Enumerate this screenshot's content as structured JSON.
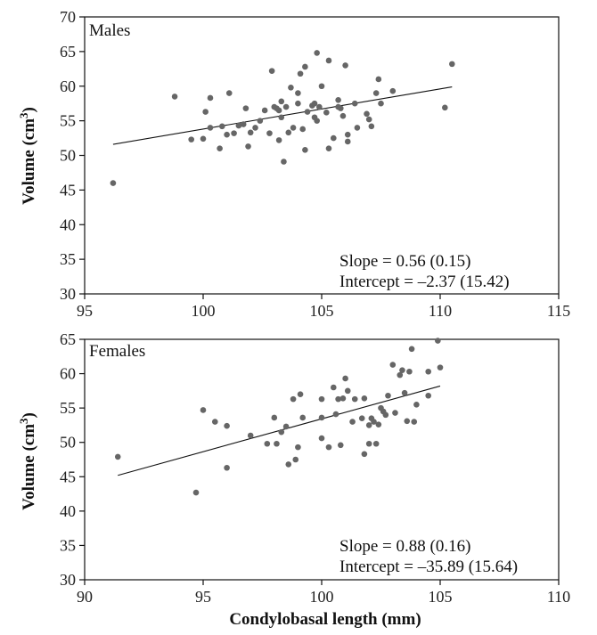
{
  "chart_data": [
    {
      "type": "scatter",
      "title": "Males",
      "xlabel": "",
      "ylabel": "Volume (cm3)",
      "xlim": [
        95,
        115
      ],
      "ylim": [
        30,
        70
      ],
      "xticks": [
        95,
        100,
        105,
        110,
        115
      ],
      "yticks": [
        30,
        35,
        40,
        45,
        50,
        55,
        60,
        65,
        70
      ],
      "slope_text": "Slope = 0.56 (0.15)",
      "intercept_text": "Intercept = –2.37 (15.42)",
      "fit_line": [
        [
          96.2,
          51.6
        ],
        [
          110.5,
          59.9
        ]
      ],
      "points": [
        [
          96.2,
          46.0
        ],
        [
          98.8,
          58.5
        ],
        [
          99.5,
          52.3
        ],
        [
          100.0,
          52.4
        ],
        [
          100.1,
          56.3
        ],
        [
          100.3,
          58.3
        ],
        [
          100.3,
          54.0
        ],
        [
          100.7,
          51.0
        ],
        [
          100.8,
          54.2
        ],
        [
          101.0,
          53.0
        ],
        [
          101.1,
          59.0
        ],
        [
          101.3,
          53.2
        ],
        [
          101.5,
          54.3
        ],
        [
          101.7,
          54.5
        ],
        [
          101.8,
          56.8
        ],
        [
          101.9,
          51.3
        ],
        [
          102.0,
          53.3
        ],
        [
          102.2,
          54.0
        ],
        [
          102.4,
          55.0
        ],
        [
          102.6,
          56.5
        ],
        [
          102.8,
          53.2
        ],
        [
          102.9,
          62.2
        ],
        [
          103.0,
          57.0
        ],
        [
          103.1,
          56.8
        ],
        [
          103.2,
          56.5
        ],
        [
          103.2,
          52.2
        ],
        [
          103.3,
          57.8
        ],
        [
          103.3,
          55.5
        ],
        [
          103.4,
          49.1
        ],
        [
          103.5,
          57.0
        ],
        [
          103.6,
          53.3
        ],
        [
          103.7,
          59.8
        ],
        [
          103.8,
          54.0
        ],
        [
          104.0,
          57.5
        ],
        [
          104.0,
          59.0
        ],
        [
          104.1,
          61.8
        ],
        [
          104.2,
          53.8
        ],
        [
          104.3,
          62.8
        ],
        [
          104.3,
          50.8
        ],
        [
          104.4,
          56.3
        ],
        [
          104.6,
          57.2
        ],
        [
          104.7,
          57.5
        ],
        [
          104.7,
          55.5
        ],
        [
          104.8,
          64.8
        ],
        [
          104.8,
          55.0
        ],
        [
          104.9,
          57.0
        ],
        [
          105.0,
          60.0
        ],
        [
          105.2,
          56.2
        ],
        [
          105.3,
          63.7
        ],
        [
          105.3,
          51.0
        ],
        [
          105.5,
          52.5
        ],
        [
          105.7,
          57.0
        ],
        [
          105.7,
          58.0
        ],
        [
          105.8,
          56.8
        ],
        [
          105.9,
          55.7
        ],
        [
          106.0,
          63.0
        ],
        [
          106.1,
          53.0
        ],
        [
          106.1,
          52.0
        ],
        [
          106.4,
          57.5
        ],
        [
          106.5,
          54.0
        ],
        [
          106.9,
          56.0
        ],
        [
          107.0,
          55.2
        ],
        [
          107.1,
          54.2
        ],
        [
          107.3,
          59.0
        ],
        [
          107.4,
          61.0
        ],
        [
          107.5,
          57.5
        ],
        [
          108.0,
          59.3
        ],
        [
          110.2,
          56.9
        ],
        [
          110.5,
          63.2
        ]
      ]
    },
    {
      "type": "scatter",
      "title": "Females",
      "xlabel": "Condylobasal length (mm)",
      "ylabel": "Volume (cm3)",
      "xlim": [
        90,
        110
      ],
      "ylim": [
        30,
        65
      ],
      "xticks": [
        90,
        95,
        100,
        105,
        110
      ],
      "yticks": [
        30,
        35,
        40,
        45,
        50,
        55,
        60,
        65
      ],
      "slope_text": "Slope = 0.88 (0.16)",
      "intercept_text": "Intercept = –35.89 (15.64)",
      "fit_line": [
        [
          91.4,
          45.2
        ],
        [
          105.0,
          58.2
        ]
      ],
      "points": [
        [
          91.4,
          47.9
        ],
        [
          94.7,
          42.7
        ],
        [
          95.0,
          54.7
        ],
        [
          95.5,
          53.0
        ],
        [
          96.0,
          52.4
        ],
        [
          96.0,
          46.3
        ],
        [
          97.0,
          51.0
        ],
        [
          97.7,
          49.8
        ],
        [
          98.0,
          53.6
        ],
        [
          98.1,
          49.8
        ],
        [
          98.3,
          51.5
        ],
        [
          98.5,
          52.3
        ],
        [
          98.6,
          46.8
        ],
        [
          98.8,
          56.3
        ],
        [
          98.9,
          47.5
        ],
        [
          99.0,
          49.3
        ],
        [
          99.1,
          57.0
        ],
        [
          99.2,
          53.6
        ],
        [
          100.0,
          56.3
        ],
        [
          100.0,
          53.6
        ],
        [
          100.0,
          50.6
        ],
        [
          100.3,
          49.3
        ],
        [
          100.5,
          58.0
        ],
        [
          100.6,
          54.1
        ],
        [
          100.7,
          56.3
        ],
        [
          100.8,
          49.6
        ],
        [
          100.9,
          56.4
        ],
        [
          101.0,
          59.3
        ],
        [
          101.1,
          57.5
        ],
        [
          101.3,
          53.0
        ],
        [
          101.4,
          56.3
        ],
        [
          101.7,
          53.5
        ],
        [
          101.8,
          48.3
        ],
        [
          101.8,
          56.4
        ],
        [
          102.0,
          52.5
        ],
        [
          102.0,
          49.8
        ],
        [
          102.1,
          53.5
        ],
        [
          102.2,
          53.0
        ],
        [
          102.3,
          49.8
        ],
        [
          102.4,
          52.6
        ],
        [
          102.5,
          55.0
        ],
        [
          102.6,
          54.5
        ],
        [
          102.7,
          54.0
        ],
        [
          102.8,
          56.8
        ],
        [
          103.0,
          61.3
        ],
        [
          103.1,
          54.3
        ],
        [
          103.3,
          59.8
        ],
        [
          103.4,
          60.5
        ],
        [
          103.5,
          57.2
        ],
        [
          103.6,
          53.1
        ],
        [
          103.7,
          60.3
        ],
        [
          103.8,
          63.6
        ],
        [
          103.9,
          53.0
        ],
        [
          104.0,
          55.5
        ],
        [
          104.5,
          60.3
        ],
        [
          104.5,
          56.8
        ],
        [
          104.9,
          64.8
        ],
        [
          105.0,
          60.9
        ]
      ]
    }
  ]
}
